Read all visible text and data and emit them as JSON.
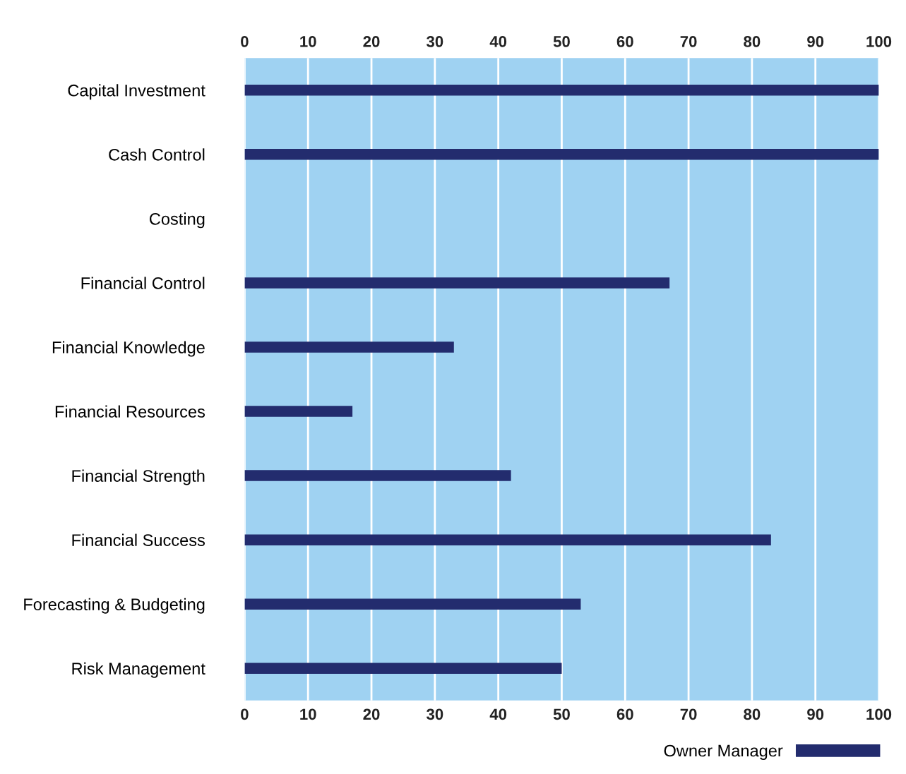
{
  "chart_data": {
    "type": "bar",
    "orientation": "horizontal",
    "categories": [
      "Capital Investment",
      "Cash Control",
      "Costing",
      "Financial Control",
      "Financial Knowledge",
      "Financial Resources",
      "Financial Strength",
      "Financial Success",
      "Forecasting & Budgeting",
      "Risk Management"
    ],
    "series": [
      {
        "name": "Owner Manager",
        "color": "#232c6e",
        "values": [
          100,
          100,
          0,
          67,
          33,
          17,
          42,
          83,
          53,
          50
        ]
      }
    ],
    "xlim": [
      0,
      100
    ],
    "xticks": [
      0,
      10,
      20,
      30,
      40,
      50,
      60,
      70,
      80,
      90,
      100
    ],
    "x2lim": [
      0,
      100
    ],
    "x2ticks": [
      0,
      10,
      20,
      30,
      40,
      50,
      60,
      70,
      80,
      90,
      100
    ],
    "grid": "x",
    "legend": "bottom right"
  }
}
